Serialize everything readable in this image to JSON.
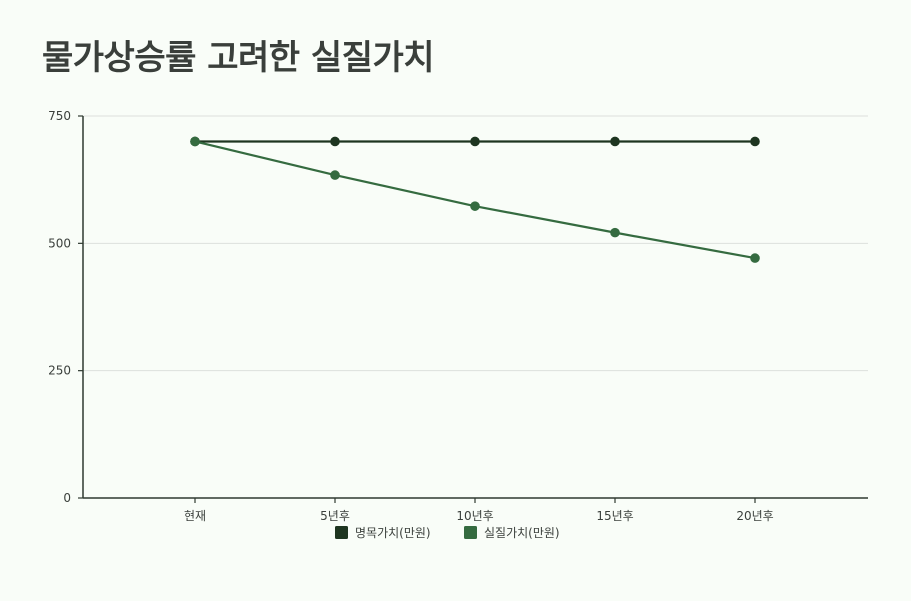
{
  "chart_data": {
    "type": "line",
    "title": "물가상승률 고려한 실질가치",
    "categories": [
      "현재",
      "5년후",
      "10년후",
      "15년후",
      "20년후"
    ],
    "series": [
      {
        "name": "명목가치(만원)",
        "values": [
          700,
          700,
          700,
          700,
          700
        ],
        "color": "#1e3520"
      },
      {
        "name": "실질가치(만원)",
        "values": [
          700,
          634,
          573,
          521,
          471
        ],
        "color": "#356b40"
      }
    ],
    "ylim": [
      0,
      750
    ],
    "yticks": [
      0,
      250,
      500,
      750
    ],
    "grid": true,
    "legend": "bottom-center"
  }
}
